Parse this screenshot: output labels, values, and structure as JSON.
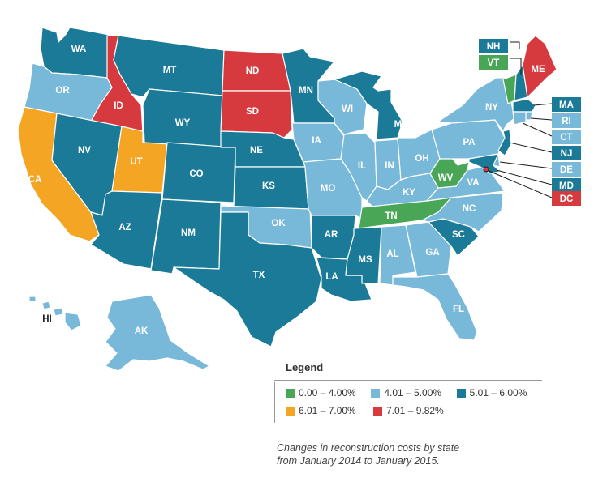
{
  "colors": {
    "bin1": "#4aa657",
    "bin2": "#78b8d8",
    "bin3": "#1a7a97",
    "bin4": "#f5a524",
    "bin5": "#d63a3f"
  },
  "states": [
    {
      "code": "WA",
      "bin": "bin3"
    },
    {
      "code": "OR",
      "bin": "bin2"
    },
    {
      "code": "CA",
      "bin": "bin4"
    },
    {
      "code": "ID",
      "bin": "bin5"
    },
    {
      "code": "NV",
      "bin": "bin3"
    },
    {
      "code": "UT",
      "bin": "bin4"
    },
    {
      "code": "AZ",
      "bin": "bin3"
    },
    {
      "code": "MT",
      "bin": "bin3"
    },
    {
      "code": "WY",
      "bin": "bin3"
    },
    {
      "code": "CO",
      "bin": "bin3"
    },
    {
      "code": "NM",
      "bin": "bin3"
    },
    {
      "code": "ND",
      "bin": "bin5"
    },
    {
      "code": "SD",
      "bin": "bin5"
    },
    {
      "code": "NE",
      "bin": "bin3"
    },
    {
      "code": "KS",
      "bin": "bin3"
    },
    {
      "code": "OK",
      "bin": "bin2"
    },
    {
      "code": "TX",
      "bin": "bin3"
    },
    {
      "code": "MN",
      "bin": "bin3"
    },
    {
      "code": "IA",
      "bin": "bin2"
    },
    {
      "code": "MO",
      "bin": "bin2"
    },
    {
      "code": "AR",
      "bin": "bin3"
    },
    {
      "code": "LA",
      "bin": "bin3"
    },
    {
      "code": "WI",
      "bin": "bin2"
    },
    {
      "code": "IL",
      "bin": "bin2"
    },
    {
      "code": "MI",
      "bin": "bin3"
    },
    {
      "code": "IN",
      "bin": "bin2"
    },
    {
      "code": "OH",
      "bin": "bin2"
    },
    {
      "code": "KY",
      "bin": "bin2"
    },
    {
      "code": "TN",
      "bin": "bin1"
    },
    {
      "code": "MS",
      "bin": "bin3"
    },
    {
      "code": "AL",
      "bin": "bin2"
    },
    {
      "code": "GA",
      "bin": "bin2"
    },
    {
      "code": "FL",
      "bin": "bin2"
    },
    {
      "code": "SC",
      "bin": "bin3"
    },
    {
      "code": "NC",
      "bin": "bin2"
    },
    {
      "code": "VA",
      "bin": "bin2"
    },
    {
      "code": "WV",
      "bin": "bin1"
    },
    {
      "code": "PA",
      "bin": "bin2"
    },
    {
      "code": "NY",
      "bin": "bin2"
    },
    {
      "code": "VT",
      "bin": "bin1"
    },
    {
      "code": "NH",
      "bin": "bin3"
    },
    {
      "code": "ME",
      "bin": "bin5"
    },
    {
      "code": "MA",
      "bin": "bin3"
    },
    {
      "code": "RI",
      "bin": "bin2"
    },
    {
      "code": "CT",
      "bin": "bin2"
    },
    {
      "code": "NJ",
      "bin": "bin3"
    },
    {
      "code": "DE",
      "bin": "bin2"
    },
    {
      "code": "MD",
      "bin": "bin3"
    },
    {
      "code": "DC",
      "bin": "bin5"
    },
    {
      "code": "AK",
      "bin": "bin2"
    },
    {
      "code": "HI",
      "bin": "bin2"
    }
  ],
  "legend": {
    "title": "Legend",
    "items": [
      {
        "label": "0.00 – 4.00%",
        "bin": "bin1"
      },
      {
        "label": "4.01 – 5.00%",
        "bin": "bin2"
      },
      {
        "label": "5.01 – 6.00%",
        "bin": "bin3"
      },
      {
        "label": "6.01 – 7.00%",
        "bin": "bin4"
      },
      {
        "label": "7.01 – 9.82%",
        "bin": "bin5"
      }
    ]
  },
  "caption": {
    "line1": "Changes in reconstruction costs by state",
    "line2": "from January 2014 to January 2015."
  }
}
